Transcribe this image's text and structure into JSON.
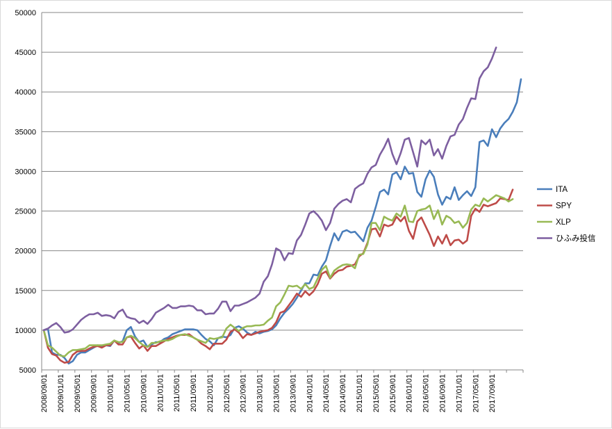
{
  "chart_data": {
    "type": "line",
    "title": "",
    "xlabel": "",
    "ylabel": "",
    "ylim": [
      5000,
      50000
    ],
    "yticks": [
      5000,
      10000,
      15000,
      20000,
      25000,
      30000,
      35000,
      40000,
      45000,
      50000
    ],
    "xtick_labels": [
      "2008/09/01",
      "2009/01/01",
      "2009/05/01",
      "2009/09/01",
      "2010/01/01",
      "2010/05/01",
      "2010/09/01",
      "2011/01/01",
      "2011/05/01",
      "2011/09/01",
      "2012/01/01",
      "2012/05/01",
      "2012/09/01",
      "2013/01/01",
      "2013/05/01",
      "2013/09/01",
      "2014/01/01",
      "2014/05/01",
      "2014/09/01",
      "2015/01/01",
      "2015/05/01",
      "2015/09/01",
      "2016/01/01",
      "2016/05/01",
      "2016/09/01",
      "2017/01/01",
      "2017/05/01",
      "2017/09/01"
    ],
    "x_start": "2008/09/01",
    "grid": true,
    "legend": "right",
    "series": [
      {
        "name": "ITA",
        "color": "#4a7ebb",
        "values": [
          10000,
          10200,
          7200,
          6900,
          6900,
          6500,
          5800,
          6100,
          6900,
          7200,
          7200,
          7500,
          7800,
          8100,
          7900,
          8100,
          8000,
          8700,
          8400,
          8600,
          10000,
          10400,
          9200,
          8500,
          8700,
          7900,
          8200,
          8500,
          8500,
          8900,
          9100,
          9500,
          9700,
          9900,
          10100,
          10100,
          10100,
          10000,
          9400,
          8900,
          8600,
          8100,
          9000,
          9200,
          9100,
          9400,
          10300,
          10500,
          10200,
          9700,
          9400,
          9800,
          9600,
          9800,
          9900,
          10100,
          10600,
          11500,
          12200,
          12700,
          13300,
          14100,
          15000,
          15900,
          15900,
          17000,
          16900,
          18000,
          18800,
          20600,
          22200,
          21300,
          22400,
          22600,
          22300,
          22400,
          21800,
          21200,
          22900,
          23800,
          25500,
          27400,
          27700,
          27100,
          29600,
          29900,
          29000,
          30600,
          29700,
          29800,
          27400,
          26800,
          29000,
          30100,
          29300,
          27100,
          25800,
          26800,
          26500,
          28000,
          26400,
          27000,
          27500,
          26900,
          28000,
          33700,
          33900,
          33200,
          35300,
          34300,
          35400,
          36100,
          36600,
          37500,
          38700,
          41600
        ]
      },
      {
        "name": "SPY",
        "color": "#be4b48",
        "values": [
          10000,
          7800,
          7000,
          6800,
          6200,
          5900,
          6000,
          6900,
          7300,
          7400,
          7400,
          7700,
          7900,
          8000,
          7800,
          8100,
          8100,
          8700,
          8200,
          8200,
          9100,
          9200,
          8400,
          7700,
          8100,
          7400,
          8000,
          8000,
          8300,
          8600,
          8900,
          9100,
          9300,
          9400,
          9400,
          9500,
          9100,
          8800,
          8300,
          8000,
          7600,
          8300,
          8300,
          8300,
          8800,
          9800,
          10100,
          9700,
          9000,
          9500,
          9400,
          9600,
          9800,
          9900,
          10000,
          10300,
          11000,
          12200,
          12400,
          13100,
          13800,
          14600,
          14200,
          14900,
          14400,
          14900,
          15800,
          17100,
          17400,
          16500,
          17100,
          17500,
          17600,
          18000,
          18100,
          18300,
          19300,
          19700,
          21000,
          22700,
          22800,
          21800,
          23300,
          23100,
          23300,
          24300,
          23700,
          24300,
          22500,
          21500,
          23700,
          24200,
          23100,
          22000,
          20600,
          21800,
          20900,
          22000,
          20700,
          21300,
          21400,
          20900,
          21300,
          24400,
          25300,
          24900,
          25800,
          25600,
          25800,
          26000,
          26600,
          26500,
          26400,
          27700
        ]
      },
      {
        "name": "XLP",
        "color": "#98b954",
        "values": [
          10000,
          8100,
          7800,
          7300,
          6800,
          6700,
          7200,
          7500,
          7500,
          7600,
          7700,
          8100,
          8100,
          8100,
          8100,
          8200,
          8300,
          8700,
          8500,
          8500,
          9100,
          9300,
          9000,
          8500,
          8100,
          7900,
          8400,
          8400,
          8600,
          8700,
          8700,
          8900,
          9200,
          9400,
          9500,
          9300,
          9100,
          8800,
          8600,
          8400,
          9000,
          8900,
          9000,
          9100,
          10200,
          10700,
          10300,
          9900,
          10300,
          10500,
          10500,
          10600,
          10600,
          10700,
          11200,
          11600,
          13000,
          13500,
          14500,
          15600,
          15500,
          15600,
          15200,
          15800,
          15200,
          15400,
          16500,
          17600,
          18100,
          16600,
          17500,
          17900,
          18200,
          18300,
          18200,
          17800,
          19500,
          19600,
          20800,
          23500,
          23500,
          22600,
          24300,
          24000,
          23800,
          24700,
          24300,
          25700,
          23700,
          23600,
          25000,
          25200,
          25300,
          25700,
          24000,
          25100,
          23300,
          24400,
          24100,
          23500,
          23700,
          22900,
          23500,
          25200,
          25800,
          25600,
          26600,
          26200,
          26600,
          27000,
          26800,
          26600,
          26200,
          26500
        ]
      },
      {
        "name": "ひふみ投信",
        "color": "#7d5fa0",
        "values": [
          10000,
          10200,
          10600,
          10900,
          10400,
          9700,
          9800,
          10100,
          10700,
          11300,
          11700,
          12000,
          12000,
          12200,
          11800,
          11900,
          11800,
          11500,
          12300,
          12600,
          11700,
          11500,
          11400,
          10900,
          11200,
          10800,
          11400,
          12200,
          12500,
          12800,
          13200,
          12800,
          12800,
          13000,
          13000,
          13100,
          13000,
          12500,
          12500,
          12000,
          12100,
          12100,
          12700,
          13600,
          13600,
          12400,
          13100,
          13100,
          13300,
          13500,
          13800,
          14100,
          14600,
          16100,
          16800,
          18300,
          20300,
          20000,
          18800,
          19700,
          19600,
          21300,
          22000,
          23300,
          24700,
          25000,
          24500,
          23800,
          22600,
          23500,
          25300,
          25900,
          26300,
          26500,
          26100,
          27800,
          28200,
          28500,
          29700,
          30500,
          30800,
          32100,
          33000,
          34100,
          32200,
          30900,
          32300,
          34000,
          34200,
          32400,
          30600,
          33900,
          33400,
          34000,
          32000,
          32800,
          31600,
          33200,
          34400,
          34600,
          35900,
          36600,
          38000,
          39200,
          39100,
          41700,
          42600,
          43100,
          44200,
          45600
        ]
      }
    ]
  }
}
